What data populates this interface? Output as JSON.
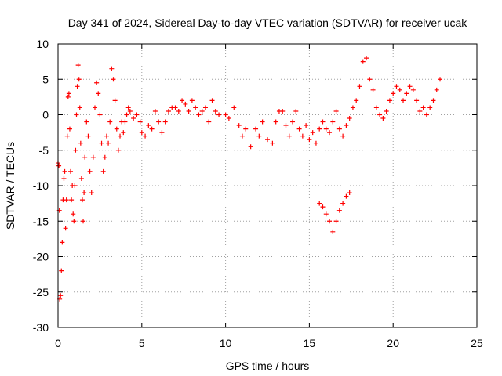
{
  "chart_data": {
    "type": "scatter",
    "title": "Day 341 of 2024, Sidereal Day-to-day VTEC variation (SDTVAR) for receiver ucak",
    "xlabel": "GPS time / hours",
    "ylabel": "SDTVAR / TECUs",
    "xlim": [
      0,
      25
    ],
    "ylim": [
      -30,
      10
    ],
    "xticks": [
      0,
      5,
      10,
      15,
      20,
      25
    ],
    "yticks": [
      -30,
      -25,
      -20,
      -15,
      -10,
      -5,
      0,
      5,
      10
    ],
    "grid": true,
    "marker": "+",
    "colors": {
      "series": "#ff0000",
      "axis": "#000000",
      "grid": "#a0a0a0"
    },
    "series": [
      {
        "name": "SDTVAR",
        "points": [
          [
            0.0,
            -6.8
          ],
          [
            0.05,
            -7.2
          ],
          [
            0.08,
            -13.5
          ],
          [
            0.1,
            -26.0
          ],
          [
            0.15,
            -25.5
          ],
          [
            0.2,
            -22.0
          ],
          [
            0.25,
            -18.0
          ],
          [
            0.3,
            -12.0
          ],
          [
            0.35,
            -9.0
          ],
          [
            0.4,
            -8.0
          ],
          [
            0.45,
            -16.0
          ],
          [
            0.5,
            -12.0
          ],
          [
            0.55,
            -3.0
          ],
          [
            0.6,
            2.5
          ],
          [
            0.65,
            3.0
          ],
          [
            0.7,
            -2.0
          ],
          [
            0.75,
            -8.0
          ],
          [
            0.8,
            -12.0
          ],
          [
            0.85,
            -10.0
          ],
          [
            0.9,
            -14.0
          ],
          [
            0.95,
            -15.0
          ],
          [
            1.0,
            -10.0
          ],
          [
            1.05,
            -5.0
          ],
          [
            1.1,
            0.0
          ],
          [
            1.15,
            4.0
          ],
          [
            1.2,
            7.0
          ],
          [
            1.25,
            5.0
          ],
          [
            1.3,
            1.0
          ],
          [
            1.35,
            -4.0
          ],
          [
            1.4,
            -9.0
          ],
          [
            1.45,
            -12.0
          ],
          [
            1.5,
            -15.0
          ],
          [
            1.55,
            -11.0
          ],
          [
            1.6,
            -6.0
          ],
          [
            1.7,
            -1.0
          ],
          [
            1.8,
            -3.0
          ],
          [
            1.9,
            -8.0
          ],
          [
            2.0,
            -11.0
          ],
          [
            2.1,
            -6.0
          ],
          [
            2.2,
            1.0
          ],
          [
            2.3,
            4.5
          ],
          [
            2.4,
            3.0
          ],
          [
            2.5,
            0.0
          ],
          [
            2.6,
            -4.0
          ],
          [
            2.7,
            -8.0
          ],
          [
            2.8,
            -6.0
          ],
          [
            2.9,
            -3.0
          ],
          [
            3.0,
            -4.0
          ],
          [
            3.1,
            -1.0
          ],
          [
            3.2,
            6.5
          ],
          [
            3.3,
            5.0
          ],
          [
            3.4,
            2.0
          ],
          [
            3.5,
            -2.0
          ],
          [
            3.6,
            -5.0
          ],
          [
            3.7,
            -3.0
          ],
          [
            3.8,
            -1.0
          ],
          [
            3.9,
            -2.5
          ],
          [
            4.0,
            -1.0
          ],
          [
            4.1,
            0.0
          ],
          [
            4.2,
            1.0
          ],
          [
            4.3,
            0.5
          ],
          [
            4.5,
            -0.5
          ],
          [
            4.7,
            0.0
          ],
          [
            4.9,
            -1.0
          ],
          [
            5.0,
            -2.5
          ],
          [
            5.2,
            -3.0
          ],
          [
            5.4,
            -1.5
          ],
          [
            5.6,
            -2.0
          ],
          [
            5.8,
            0.5
          ],
          [
            6.0,
            -1.0
          ],
          [
            6.2,
            -2.5
          ],
          [
            6.4,
            -1.0
          ],
          [
            6.6,
            0.5
          ],
          [
            6.8,
            1.0
          ],
          [
            7.0,
            1.0
          ],
          [
            7.2,
            0.5
          ],
          [
            7.4,
            2.0
          ],
          [
            7.6,
            1.5
          ],
          [
            7.8,
            0.5
          ],
          [
            8.0,
            2.0
          ],
          [
            8.2,
            1.0
          ],
          [
            8.4,
            0.0
          ],
          [
            8.6,
            0.5
          ],
          [
            8.8,
            1.0
          ],
          [
            9.0,
            -1.0
          ],
          [
            9.2,
            2.0
          ],
          [
            9.4,
            0.5
          ],
          [
            9.6,
            0.0
          ],
          [
            10.0,
            0.0
          ],
          [
            10.2,
            -0.5
          ],
          [
            10.5,
            1.0
          ],
          [
            10.8,
            -1.5
          ],
          [
            11.0,
            -3.0
          ],
          [
            11.2,
            -2.0
          ],
          [
            11.5,
            -4.5
          ],
          [
            11.8,
            -2.0
          ],
          [
            12.0,
            -3.0
          ],
          [
            12.2,
            -1.0
          ],
          [
            12.5,
            -3.5
          ],
          [
            12.8,
            -4.0
          ],
          [
            13.0,
            -1.0
          ],
          [
            13.2,
            0.5
          ],
          [
            13.4,
            0.5
          ],
          [
            13.6,
            -1.5
          ],
          [
            13.8,
            -3.0
          ],
          [
            14.0,
            -1.0
          ],
          [
            14.2,
            0.5
          ],
          [
            14.4,
            -2.0
          ],
          [
            14.6,
            -3.0
          ],
          [
            14.8,
            -1.5
          ],
          [
            15.0,
            -3.5
          ],
          [
            15.2,
            -2.5
          ],
          [
            15.4,
            -4.0
          ],
          [
            15.6,
            -2.0
          ],
          [
            15.8,
            -1.0
          ],
          [
            16.0,
            -2.0
          ],
          [
            16.2,
            -2.5
          ],
          [
            16.4,
            -1.0
          ],
          [
            16.6,
            0.5
          ],
          [
            16.8,
            -2.0
          ],
          [
            17.0,
            -3.0
          ],
          [
            17.2,
            -1.5
          ],
          [
            17.4,
            -0.5
          ],
          [
            17.6,
            1.0
          ],
          [
            17.8,
            2.0
          ],
          [
            18.0,
            4.0
          ],
          [
            18.2,
            7.5
          ],
          [
            18.4,
            8.0
          ],
          [
            18.6,
            5.0
          ],
          [
            18.8,
            3.5
          ],
          [
            19.0,
            1.0
          ],
          [
            19.2,
            0.0
          ],
          [
            19.4,
            -0.5
          ],
          [
            19.6,
            0.5
          ],
          [
            19.8,
            2.0
          ],
          [
            20.0,
            3.0
          ],
          [
            20.2,
            4.0
          ],
          [
            20.4,
            3.5
          ],
          [
            20.6,
            2.0
          ],
          [
            20.8,
            3.0
          ],
          [
            21.0,
            4.0
          ],
          [
            21.2,
            3.5
          ],
          [
            21.4,
            2.0
          ],
          [
            21.6,
            0.5
          ],
          [
            21.8,
            1.0
          ],
          [
            22.0,
            0.0
          ],
          [
            22.2,
            1.0
          ],
          [
            22.4,
            2.0
          ],
          [
            22.6,
            3.5
          ],
          [
            22.8,
            5.0
          ],
          [
            15.6,
            -12.5
          ],
          [
            15.8,
            -13.0
          ],
          [
            16.0,
            -14.0
          ],
          [
            16.2,
            -15.0
          ],
          [
            16.4,
            -16.5
          ],
          [
            16.6,
            -15.0
          ],
          [
            16.8,
            -13.5
          ],
          [
            17.0,
            -12.5
          ],
          [
            17.2,
            -11.5
          ],
          [
            17.4,
            -11.0
          ]
        ]
      }
    ]
  }
}
